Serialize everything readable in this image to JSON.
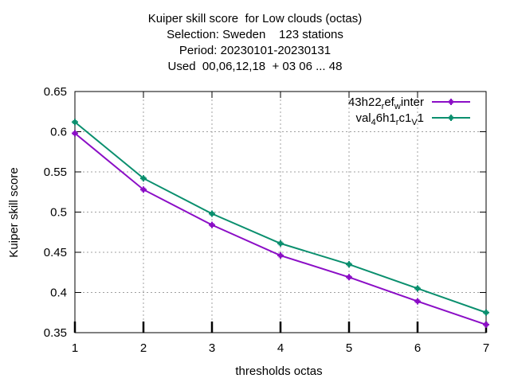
{
  "chart_data": {
    "type": "line",
    "title_lines": [
      "Kuiper skill score  for Low clouds (octas)",
      "Selection: Sweden    123 stations",
      "Period: 20230101-20230131",
      "Used  00,06,12,18  + 03 06 ... 48"
    ],
    "xlabel": "thresholds octas",
    "ylabel": "Kuiper skill score",
    "x": [
      1,
      2,
      3,
      4,
      5,
      6,
      7
    ],
    "xlim": [
      1,
      7
    ],
    "ylim": [
      0.35,
      0.65
    ],
    "yticks": [
      "0.35",
      "0.4",
      "0.45",
      "0.5",
      "0.55",
      "0.6",
      "0.65"
    ],
    "xticks": [
      "1",
      "2",
      "3",
      "4",
      "5",
      "6",
      "7"
    ],
    "grid": true,
    "legend_position": "top-right",
    "series": [
      {
        "legend": {
          "base": "43h22",
          "s1": "r",
          "mid": "ef",
          "s2": "w",
          "tail": "inter"
        },
        "color": "#8b0ec6",
        "values": [
          0.598,
          0.528,
          0.484,
          0.446,
          0.419,
          0.389,
          0.36
        ]
      },
      {
        "legend": {
          "base": "val",
          "s1": "4",
          "mid": "6h1",
          "s2": "r",
          "mid2": "c1",
          "s3": "V",
          "tail": "1"
        },
        "color": "#0a8f6e",
        "values": [
          0.612,
          0.542,
          0.498,
          0.461,
          0.435,
          0.405,
          0.375
        ]
      }
    ]
  }
}
